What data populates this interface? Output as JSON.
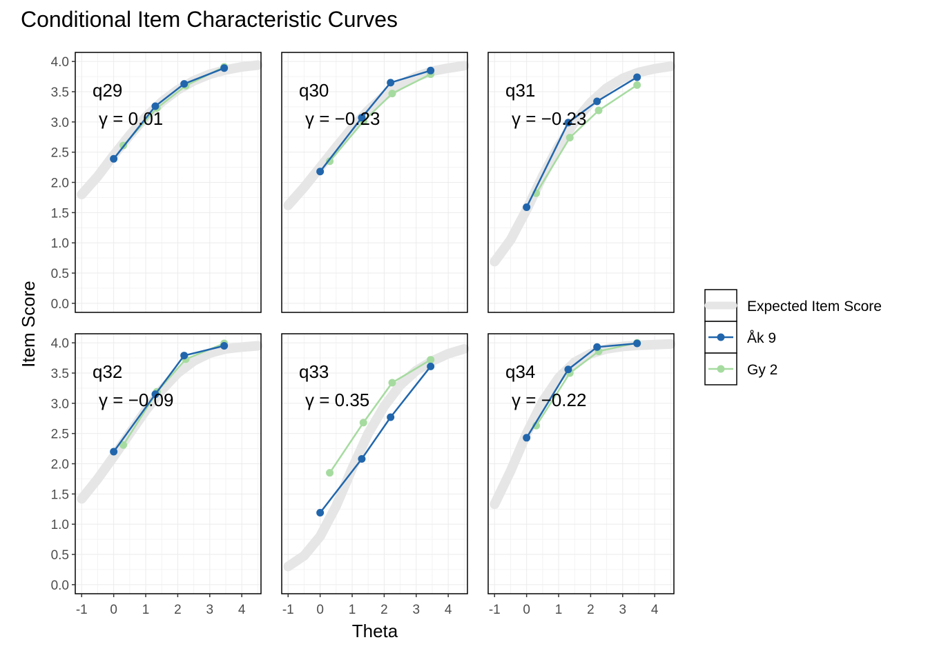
{
  "chart_data": {
    "type": "line",
    "title": "Conditional Item Characteristic Curves",
    "xlabel": "Theta",
    "ylabel": "Item Score",
    "xlim": [
      -1.2,
      4.6
    ],
    "ylim": [
      -0.15,
      4.15
    ],
    "x_ticks": [
      "-1",
      "0",
      "1",
      "2",
      "3",
      "4"
    ],
    "x_tick_values": [
      -1,
      0,
      1,
      2,
      3,
      4
    ],
    "y_ticks": [
      "0.0",
      "0.5",
      "1.0",
      "1.5",
      "2.0",
      "2.5",
      "3.0",
      "3.5",
      "4.0"
    ],
    "y_tick_values": [
      0,
      0.5,
      1,
      1.5,
      2,
      2.5,
      3,
      3.5,
      4
    ],
    "grid": true,
    "legend_position": "right",
    "legend": [
      {
        "key": "expected",
        "label": "Expected Item Score",
        "color": "#e6e6e6"
      },
      {
        "key": "ak9",
        "label": "Åk 9",
        "color": "#2166ac"
      },
      {
        "key": "gy2",
        "label": "Gy 2",
        "color": "#a6dba0"
      }
    ],
    "panels": [
      {
        "item": "q29",
        "gamma": "γ = 0.01",
        "expected": {
          "x": [
            -1.0,
            -0.5,
            0.0,
            0.5,
            1.0,
            1.5,
            2.0,
            2.5,
            3.0,
            3.5,
            4.0,
            4.5
          ],
          "y": [
            1.8,
            2.1,
            2.45,
            2.78,
            3.08,
            3.33,
            3.53,
            3.68,
            3.79,
            3.86,
            3.91,
            3.94
          ]
        },
        "ak9": {
          "x": [
            0.0,
            1.3,
            2.2,
            3.45
          ],
          "y": [
            2.39,
            3.26,
            3.63,
            3.89
          ]
        },
        "gy2": {
          "x": [
            0.3,
            1.35,
            2.25,
            3.45
          ],
          "y": [
            2.61,
            3.23,
            3.6,
            3.91
          ]
        }
      },
      {
        "item": "q30",
        "gamma": "γ = −0.23",
        "expected": {
          "x": [
            -1.0,
            -0.5,
            0.0,
            0.5,
            1.0,
            1.5,
            2.0,
            2.5,
            3.0,
            3.5,
            4.0,
            4.5
          ],
          "y": [
            1.62,
            1.92,
            2.25,
            2.58,
            2.9,
            3.19,
            3.43,
            3.62,
            3.75,
            3.84,
            3.89,
            3.93
          ]
        },
        "ak9": {
          "x": [
            0.0,
            1.3,
            2.2,
            3.45
          ],
          "y": [
            2.18,
            3.07,
            3.65,
            3.85
          ]
        },
        "gy2": {
          "x": [
            0.3,
            1.35,
            2.25,
            3.45
          ],
          "y": [
            2.35,
            3.01,
            3.47,
            3.79
          ]
        }
      },
      {
        "item": "q31",
        "gamma": "γ = −0.23",
        "expected": {
          "x": [
            -1.0,
            -0.5,
            0.0,
            0.5,
            1.0,
            1.5,
            2.0,
            2.5,
            3.0,
            3.5,
            4.0,
            4.5
          ],
          "y": [
            0.69,
            1.05,
            1.55,
            2.1,
            2.6,
            3.0,
            3.32,
            3.56,
            3.72,
            3.82,
            3.88,
            3.92
          ]
        },
        "ak9": {
          "x": [
            0.0,
            1.3,
            2.2,
            3.45
          ],
          "y": [
            1.59,
            2.99,
            3.34,
            3.74
          ]
        },
        "gy2": {
          "x": [
            0.3,
            1.35,
            2.25,
            3.45
          ],
          "y": [
            1.82,
            2.74,
            3.19,
            3.61
          ]
        }
      },
      {
        "item": "q32",
        "gamma": "γ = −0.09",
        "expected": {
          "x": [
            -1.0,
            -0.5,
            0.0,
            0.5,
            1.0,
            1.5,
            2.0,
            2.5,
            3.0,
            3.5,
            4.0,
            4.5
          ],
          "y": [
            1.42,
            1.75,
            2.12,
            2.5,
            2.88,
            3.22,
            3.5,
            3.7,
            3.83,
            3.9,
            3.93,
            3.95
          ]
        },
        "ak9": {
          "x": [
            0.0,
            1.3,
            2.2,
            3.45
          ],
          "y": [
            2.2,
            3.15,
            3.79,
            3.95
          ]
        },
        "gy2": {
          "x": [
            0.3,
            1.35,
            2.25,
            3.45
          ],
          "y": [
            2.31,
            3.19,
            3.73,
            3.99
          ]
        }
      },
      {
        "item": "q33",
        "gamma": "γ = 0.35",
        "expected": {
          "x": [
            -1.0,
            -0.5,
            0.0,
            0.5,
            1.0,
            1.5,
            2.0,
            2.5,
            3.0,
            3.5,
            4.0,
            4.5
          ],
          "y": [
            0.3,
            0.48,
            0.8,
            1.3,
            1.92,
            2.5,
            2.95,
            3.3,
            3.54,
            3.7,
            3.82,
            3.9
          ]
        },
        "ak9": {
          "x": [
            0.0,
            1.3,
            2.2,
            3.45
          ],
          "y": [
            1.19,
            2.08,
            2.77,
            3.61
          ]
        },
        "gy2": {
          "x": [
            0.3,
            1.35,
            2.25,
            3.45
          ],
          "y": [
            1.85,
            2.68,
            3.34,
            3.72
          ]
        }
      },
      {
        "item": "q34",
        "gamma": "γ = −0.22",
        "expected": {
          "x": [
            -1.0,
            -0.5,
            0.0,
            0.5,
            1.0,
            1.5,
            2.0,
            2.5,
            3.0,
            3.5,
            4.0,
            4.5
          ],
          "y": [
            1.33,
            1.88,
            2.5,
            3.03,
            3.42,
            3.68,
            3.82,
            3.9,
            3.94,
            3.96,
            3.97,
            3.98
          ]
        },
        "ak9": {
          "x": [
            0.0,
            1.3,
            2.2,
            3.45
          ],
          "y": [
            2.43,
            3.56,
            3.93,
            3.99
          ]
        },
        "gy2": {
          "x": [
            0.3,
            1.35,
            2.25,
            3.45
          ],
          "y": [
            2.63,
            3.5,
            3.86,
            4.0
          ]
        }
      }
    ]
  }
}
